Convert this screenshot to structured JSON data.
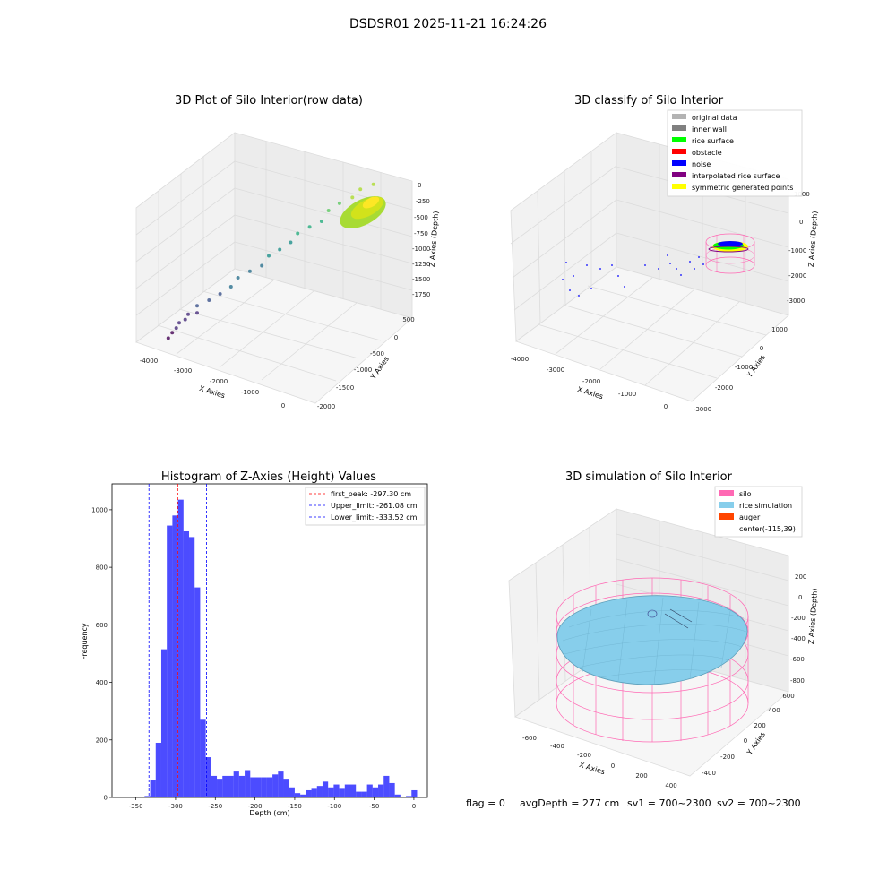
{
  "figure": {
    "suptitle": "DSDSR01 2025-11-21 16:24:26",
    "footer": {
      "flag": "flag = 0",
      "avg_depth": "avgDepth = 277 cm",
      "sv1": "sv1 = 700~2300",
      "sv2": "sv2 = 700~2300"
    }
  },
  "chart_data": [
    {
      "type": "scatter",
      "projection": "3d",
      "title": "3D Plot of Silo Interior(row data)",
      "xlabel": "X Axies",
      "ylabel": "Y Axies",
      "zlabel": "Z Axies (Depth)",
      "xticks": [
        "-4000",
        "-3000",
        "-2000",
        "-1000",
        "0"
      ],
      "yticks": [
        "500",
        "0",
        "-500",
        "-1000",
        "-1500",
        "-2000"
      ],
      "zticks": [
        "0",
        "-250",
        "-500",
        "-750",
        "-1000",
        "-1250",
        "-1500",
        "-1750"
      ],
      "colormap": "viridis",
      "points_approx": [
        {
          "x": -3900,
          "y": -300,
          "z": -1900
        },
        {
          "x": -3800,
          "y": -200,
          "z": -1800
        },
        {
          "x": -3700,
          "y": -100,
          "z": -1750
        },
        {
          "x": -3600,
          "y": 100,
          "z": -1700
        },
        {
          "x": -3500,
          "y": 0,
          "z": -1650
        },
        {
          "x": -3400,
          "y": 200,
          "z": -1600
        },
        {
          "x": -3300,
          "y": -200,
          "z": -1550
        },
        {
          "x": -3200,
          "y": 300,
          "z": -1500
        },
        {
          "x": -3000,
          "y": 100,
          "z": -1450
        },
        {
          "x": -2800,
          "y": 0,
          "z": -1400
        },
        {
          "x": -2600,
          "y": -100,
          "z": -1300
        },
        {
          "x": -2400,
          "y": 200,
          "z": -1250
        },
        {
          "x": -2200,
          "y": 0,
          "z": -1150
        },
        {
          "x": -2000,
          "y": -200,
          "z": -1100
        },
        {
          "x": -1800,
          "y": 100,
          "z": -1000
        },
        {
          "x": -1600,
          "y": 0,
          "z": -950
        },
        {
          "x": -1400,
          "y": -100,
          "z": -850
        },
        {
          "x": -1200,
          "y": 200,
          "z": -800
        },
        {
          "x": -1000,
          "y": 0,
          "z": -700
        },
        {
          "x": -800,
          "y": -200,
          "z": -650
        },
        {
          "x": -600,
          "y": 100,
          "z": -500
        },
        {
          "x": -400,
          "y": 0,
          "z": -400
        },
        {
          "x": -200,
          "y": -300,
          "z": -300
        },
        {
          "x": 0,
          "y": -100,
          "z": -250
        },
        {
          "x": 200,
          "y": -400,
          "z": -200
        }
      ]
    },
    {
      "type": "scatter",
      "projection": "3d",
      "title": "3D classify of Silo Interior",
      "xlabel": "X Axies",
      "ylabel": "Y Axies",
      "zlabel": "Z Axies (Depth)",
      "xticks": [
        "-4000",
        "-3000",
        "-2000",
        "-1000",
        "0"
      ],
      "yticks": [
        "1000",
        "0",
        "-1000",
        "-2000",
        "-3000"
      ],
      "zticks": [
        "1000",
        "0",
        "-1000",
        "-2000",
        "-3000"
      ],
      "legend_position": "upper right",
      "legend": [
        {
          "label": "original data",
          "color": "#b3b3b3"
        },
        {
          "label": "inner wall",
          "color": "#808080"
        },
        {
          "label": "rice surface",
          "color": "#00ff00"
        },
        {
          "label": "obstacle",
          "color": "#ff0000"
        },
        {
          "label": "noise",
          "color": "#0000ff"
        },
        {
          "label": "interpolated rice surface",
          "color": "#800080"
        },
        {
          "label": "symmetric generated points",
          "color": "#ffff00"
        }
      ]
    },
    {
      "type": "bar",
      "title": "Histogram of Z-Axies (Height) Values",
      "xlabel": "Depth (cm)",
      "ylabel": "Frequency",
      "xlim": [
        -380,
        17
      ],
      "ylim": [
        0,
        1090
      ],
      "xticks": [
        -350,
        -300,
        -250,
        -200,
        -150,
        -100,
        -50,
        0
      ],
      "yticks": [
        0,
        200,
        400,
        600,
        800,
        1000
      ],
      "bar_color": "#0000ff",
      "bin_width": 7,
      "bins_left": [
        -339,
        -332,
        -325,
        -318,
        -311,
        -304,
        -297,
        -290,
        -283,
        -276,
        -269,
        -262,
        -255,
        -248,
        -241,
        -234,
        -227,
        -220,
        -213,
        -206,
        -199,
        -192,
        -185,
        -178,
        -171,
        -164,
        -157,
        -150,
        -143,
        -136,
        -129,
        -122,
        -115,
        -108,
        -101,
        -94,
        -87,
        -80,
        -73,
        -66,
        -59,
        -52,
        -45,
        -38,
        -31,
        -24,
        -17,
        -10,
        -3
      ],
      "counts": [
        5,
        60,
        190,
        515,
        945,
        980,
        1035,
        925,
        905,
        730,
        270,
        140,
        75,
        65,
        75,
        75,
        90,
        75,
        95,
        70,
        70,
        70,
        70,
        80,
        90,
        65,
        35,
        15,
        10,
        25,
        30,
        40,
        55,
        35,
        45,
        30,
        45,
        45,
        20,
        20,
        45,
        35,
        45,
        75,
        50,
        10,
        0,
        5,
        25
      ],
      "vlines": [
        {
          "label": "first_peak: -297.30 cm",
          "x": -297.3,
          "color": "#ff0000"
        },
        {
          "label": "Upper_limit: -261.08 cm",
          "x": -261.08,
          "color": "#0000ff"
        },
        {
          "label": "Lower_limit: -333.52 cm",
          "x": -333.52,
          "color": "#0000ff"
        }
      ],
      "legend_position": "upper right"
    },
    {
      "type": "surface",
      "projection": "3d",
      "title": "3D simulation of Silo Interior",
      "xlabel": "X Axies",
      "ylabel": "Y Axies",
      "zlabel": "Z Axies (Depth)",
      "xticks": [
        "-600",
        "-400",
        "-200",
        "0",
        "200",
        "400"
      ],
      "yticks": [
        "600",
        "400",
        "200",
        "0",
        "-200",
        "-400"
      ],
      "zticks": [
        "200",
        "0",
        "-200",
        "-400",
        "-600",
        "-800"
      ],
      "legend_position": "upper right",
      "legend": [
        {
          "label": "silo",
          "color": "#ff69b4"
        },
        {
          "label": "rice simulation",
          "color": "#87ceeb"
        },
        {
          "label": "auger",
          "color": "#ff4500"
        },
        {
          "label": "center(-115,39)",
          "color": ""
        }
      ]
    }
  ]
}
